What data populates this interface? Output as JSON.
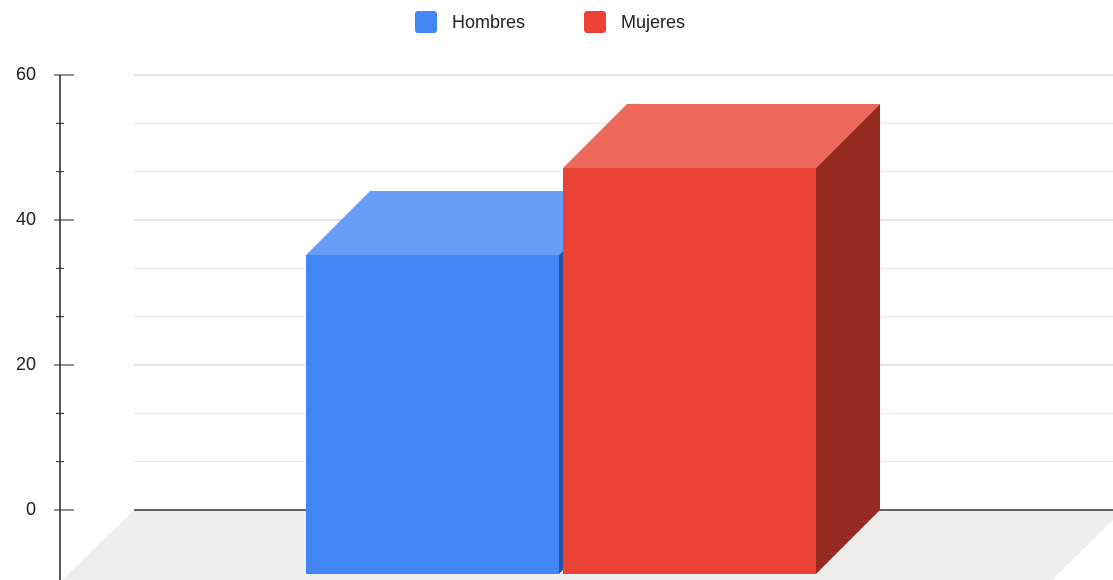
{
  "chart_data": {
    "type": "bar3d",
    "categories": [
      null
    ],
    "series": [
      {
        "name": "Hombres",
        "color": "#4285f4",
        "values": [
          44
        ]
      },
      {
        "name": "Mujeres",
        "color": "#ea4335",
        "values": [
          56
        ]
      }
    ],
    "ylim": [
      0,
      60
    ],
    "yticks": [
      0,
      20,
      40,
      60
    ],
    "grid": true,
    "legend": "top"
  }
}
